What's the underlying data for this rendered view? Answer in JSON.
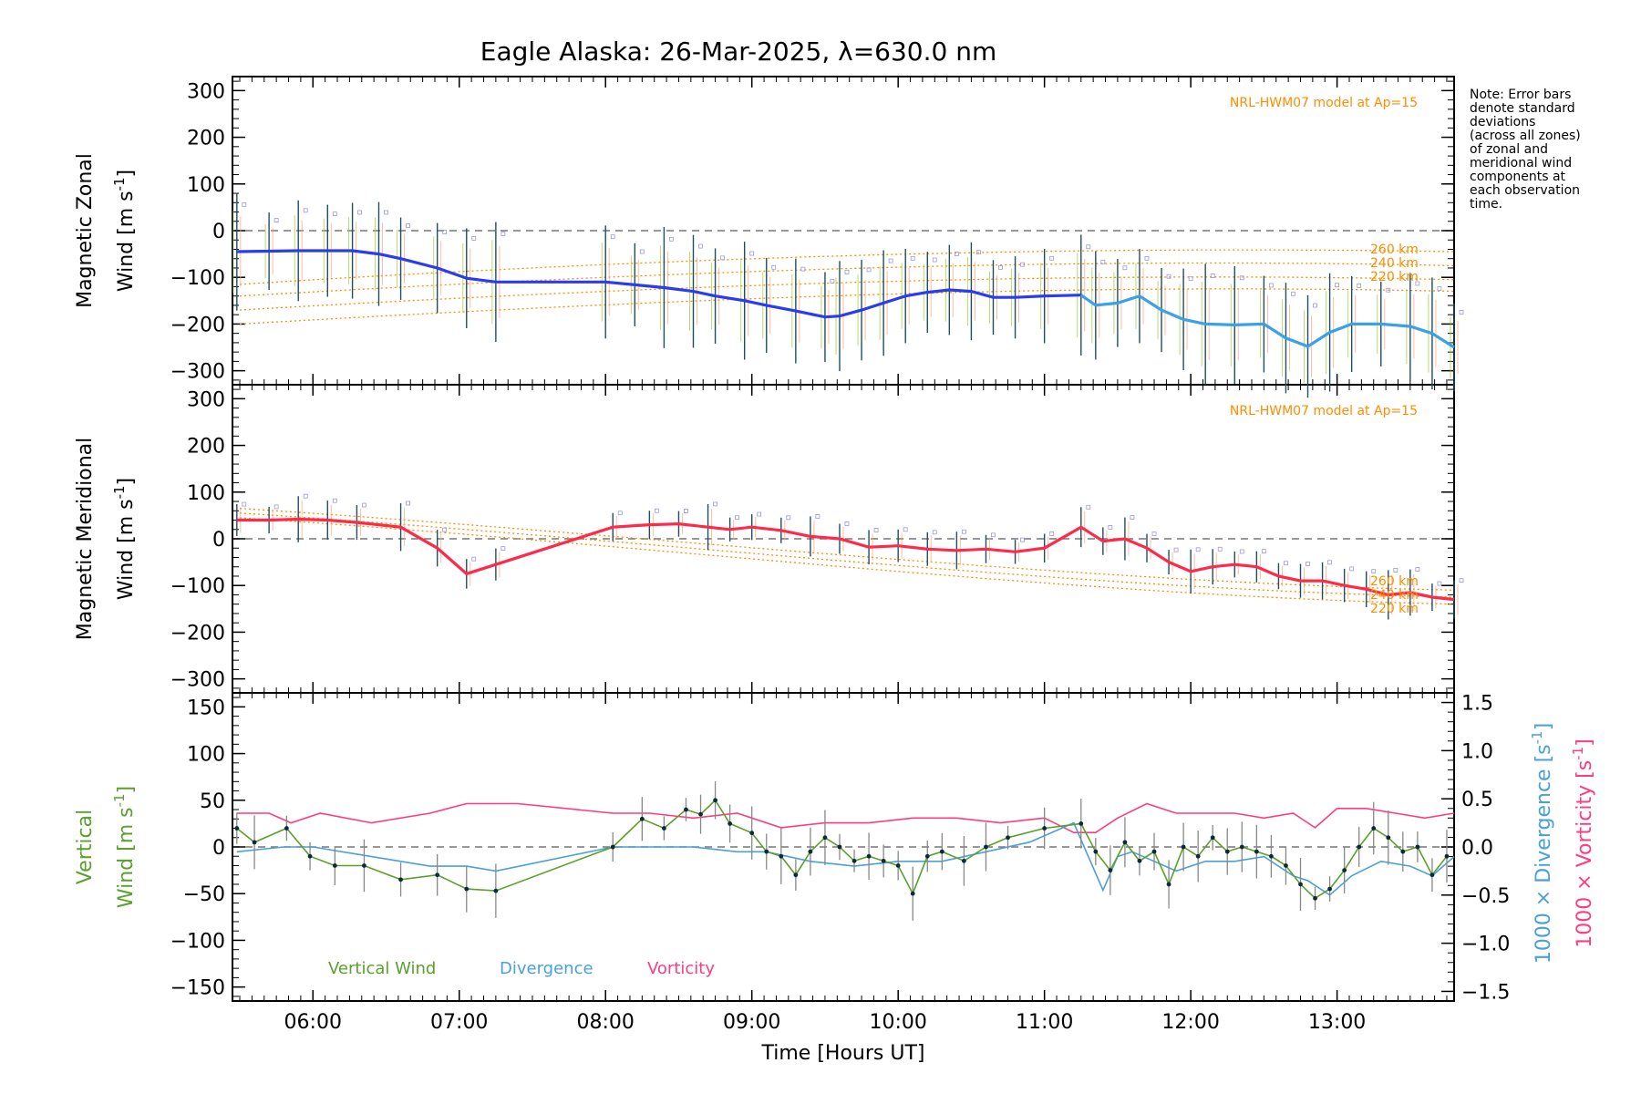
{
  "chart_data": {
    "type": "line",
    "title": "Eagle Alaska: 26-Mar-2025, λ=630.0 nm",
    "xlabel": "Time [Hours UT]",
    "xlim": [
      5.45,
      13.8
    ],
    "xticks": [
      "06:00",
      "07:00",
      "08:00",
      "09:00",
      "10:00",
      "11:00",
      "12:00",
      "13:00"
    ],
    "note": [
      "Note: Error bars",
      "denote standard",
      "deviations",
      "(across all zones)",
      "of zonal and",
      "meridional wind",
      "components at",
      "each observation",
      "time."
    ],
    "panels": {
      "zonal": {
        "ylabel_1": "Magnetic Zonal",
        "ylabel_2": "Wind [m s",
        "ylim": [
          -330,
          330
        ],
        "yticks": [
          "300",
          "200",
          "100",
          "0",
          "−100",
          "−200",
          "−300"
        ],
        "model_label": "NRL-HWM07 model at Ap=15",
        "model_alt_labels": [
          "260 km",
          "240 km",
          "220 km"
        ],
        "series_color": "#2b3cf0",
        "series_color_late": "#3aa0e8",
        "x": [
          5.48,
          5.7,
          5.9,
          6.1,
          6.27,
          6.45,
          6.6,
          6.85,
          7.05,
          7.25,
          8.0,
          8.2,
          8.4,
          8.6,
          8.75,
          8.95,
          9.1,
          9.3,
          9.5,
          9.6,
          9.75,
          9.9,
          10.05,
          10.2,
          10.35,
          10.5,
          10.65,
          10.8,
          11.0,
          11.25,
          11.35,
          11.5,
          11.65,
          11.8,
          11.95,
          12.1,
          12.3,
          12.5,
          12.65,
          12.8,
          12.95,
          13.1,
          13.3,
          13.5,
          13.65,
          13.8
        ],
        "values": [
          -45,
          -44,
          -43,
          -43,
          -43,
          -50,
          -60,
          -80,
          -102,
          -110,
          -110,
          -116,
          -122,
          -130,
          -140,
          -150,
          -160,
          -172,
          -185,
          -183,
          -170,
          -155,
          -140,
          -132,
          -127,
          -130,
          -143,
          -143,
          -140,
          -138,
          -160,
          -155,
          -140,
          -170,
          -190,
          -200,
          -202,
          -200,
          -230,
          -248,
          -218,
          -200,
          -200,
          -205,
          -220,
          -250
        ]
      },
      "meridional": {
        "ylabel_1": "Magnetic Meridional",
        "ylabel_2": "Wind [m s",
        "ylim": [
          -330,
          330
        ],
        "yticks": [
          "300",
          "200",
          "100",
          "0",
          "−100",
          "−200",
          "−300"
        ],
        "model_label": "NRL-HWM07 model at Ap=15",
        "model_alt_labels": [
          "260 km",
          "240 km",
          "220 km"
        ],
        "series_color": "#ff2a4a",
        "x": [
          5.48,
          5.7,
          5.9,
          6.1,
          6.3,
          6.6,
          6.85,
          7.05,
          7.25,
          8.05,
          8.3,
          8.5,
          8.7,
          8.85,
          9.0,
          9.2,
          9.4,
          9.6,
          9.8,
          10.0,
          10.2,
          10.4,
          10.6,
          10.8,
          11.0,
          11.25,
          11.4,
          11.55,
          11.7,
          11.85,
          12.0,
          12.15,
          12.3,
          12.45,
          12.6,
          12.75,
          12.9,
          13.05,
          13.2,
          13.35,
          13.5,
          13.65,
          13.8
        ],
        "values": [
          40,
          40,
          42,
          40,
          35,
          25,
          -20,
          -75,
          -55,
          25,
          30,
          32,
          25,
          20,
          25,
          18,
          5,
          0,
          -18,
          -15,
          -22,
          -25,
          -22,
          -28,
          -20,
          25,
          -5,
          0,
          -20,
          -50,
          -70,
          -60,
          -55,
          -60,
          -80,
          -90,
          -90,
          -100,
          -108,
          -120,
          -115,
          -125,
          -130
        ]
      },
      "lower": {
        "ylabel_1": "Vertical",
        "ylabel_2": "Wind [m s",
        "ylim": [
          -165,
          165
        ],
        "yticks": [
          "150",
          "100",
          "50",
          "0",
          "−50",
          "−100",
          "−150"
        ],
        "y2lim": [
          -1.6,
          1.6
        ],
        "y2ticks": [
          "1.5",
          "1.0",
          "0.5",
          "0.0",
          "−0.5",
          "−1.0",
          "−1.5"
        ],
        "y2label_div": "1000 × Divergence [s",
        "y2label_vor": "1000 × Vorticity [s",
        "legend": [
          "Vertical Wind",
          "Divergence",
          "Vorticity"
        ],
        "colors": {
          "vertical": "#5aa02c",
          "divergence": "#4aa0d8",
          "vorticity": "#ff3c82"
        },
        "vertical_x": [
          5.48,
          5.6,
          5.82,
          5.98,
          6.15,
          6.35,
          6.6,
          6.85,
          7.05,
          7.25,
          8.05,
          8.25,
          8.4,
          8.55,
          8.65,
          8.75,
          8.85,
          9.0,
          9.1,
          9.2,
          9.3,
          9.4,
          9.5,
          9.6,
          9.7,
          9.8,
          9.9,
          10.0,
          10.1,
          10.2,
          10.3,
          10.45,
          10.6,
          10.75,
          11.0,
          11.25,
          11.35,
          11.45,
          11.55,
          11.65,
          11.75,
          11.85,
          11.95,
          12.05,
          12.15,
          12.25,
          12.35,
          12.45,
          12.55,
          12.65,
          12.75,
          12.85,
          12.95,
          13.05,
          13.15,
          13.25,
          13.35,
          13.45,
          13.55,
          13.65,
          13.75
        ],
        "vertical_values": [
          20,
          5,
          20,
          -10,
          -20,
          -20,
          -35,
          -30,
          -45,
          -47,
          0,
          30,
          20,
          40,
          35,
          50,
          25,
          15,
          -5,
          -10,
          -30,
          -5,
          10,
          0,
          -15,
          -10,
          -15,
          -20,
          -50,
          -10,
          -5,
          -15,
          0,
          10,
          20,
          25,
          -5,
          -25,
          5,
          -15,
          -5,
          -40,
          0,
          -10,
          10,
          -5,
          0,
          -5,
          -10,
          -20,
          -40,
          -55,
          -45,
          -25,
          0,
          20,
          10,
          -5,
          0,
          -30,
          -10
        ],
        "divergence_x": [
          5.48,
          5.8,
          6.0,
          6.4,
          6.8,
          7.05,
          7.25,
          8.05,
          8.3,
          8.6,
          8.9,
          9.1,
          9.4,
          9.7,
          10.0,
          10.3,
          10.6,
          10.9,
          11.2,
          11.3,
          11.4,
          11.5,
          11.6,
          11.75,
          11.9,
          12.1,
          12.3,
          12.5,
          12.7,
          12.8,
          12.95,
          13.1,
          13.3,
          13.5,
          13.65,
          13.8
        ],
        "divergence_values": [
          -0.05,
          0.0,
          0.0,
          -0.1,
          -0.2,
          -0.2,
          -0.25,
          0.0,
          0.0,
          0.0,
          -0.05,
          -0.05,
          -0.15,
          -0.2,
          -0.15,
          -0.15,
          -0.05,
          0.05,
          0.25,
          -0.1,
          -0.45,
          -0.1,
          -0.05,
          -0.15,
          -0.25,
          -0.15,
          -0.15,
          -0.1,
          -0.3,
          -0.35,
          -0.5,
          -0.3,
          -0.15,
          -0.2,
          -0.3,
          -0.1
        ],
        "vorticity_x": [
          5.48,
          5.7,
          5.85,
          6.05,
          6.4,
          6.8,
          7.05,
          7.4,
          8.05,
          8.3,
          8.6,
          8.9,
          9.2,
          9.5,
          9.8,
          10.1,
          10.4,
          10.7,
          11.0,
          11.2,
          11.35,
          11.5,
          11.7,
          11.9,
          12.1,
          12.3,
          12.5,
          12.7,
          12.85,
          13.0,
          13.2,
          13.4,
          13.6,
          13.8
        ],
        "vorticity_values": [
          0.35,
          0.35,
          0.25,
          0.35,
          0.25,
          0.35,
          0.45,
          0.45,
          0.35,
          0.35,
          0.3,
          0.35,
          0.2,
          0.25,
          0.25,
          0.3,
          0.3,
          0.25,
          0.3,
          0.15,
          0.15,
          0.3,
          0.45,
          0.35,
          0.35,
          0.35,
          0.3,
          0.35,
          0.2,
          0.4,
          0.4,
          0.35,
          0.3,
          0.35
        ]
      }
    }
  }
}
